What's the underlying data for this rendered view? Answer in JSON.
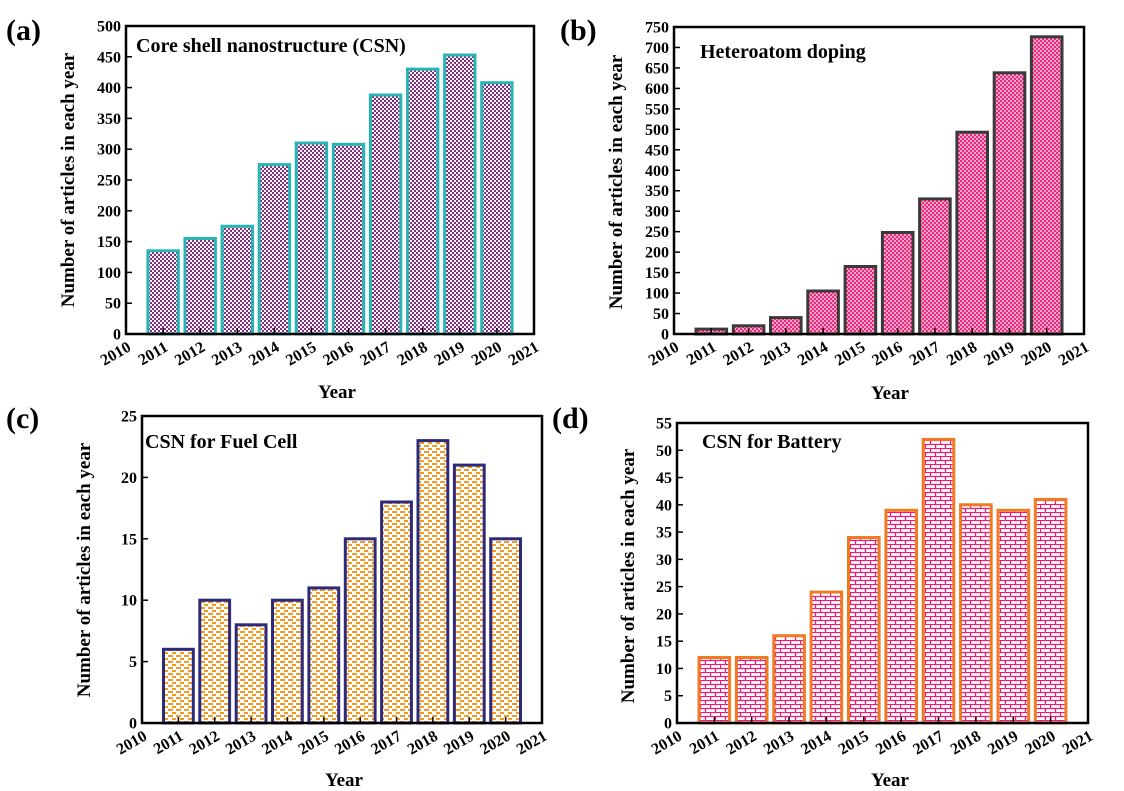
{
  "figure": {
    "panels": [
      {
        "letter": "(a)"
      },
      {
        "letter": "(b)"
      },
      {
        "letter": "(c)"
      },
      {
        "letter": "(d)"
      }
    ]
  },
  "colors": {
    "axis": "#000000",
    "panel_a_fill": "#8a2a86",
    "panel_a_edge": "#26b7b5",
    "panel_b_fill": "#ee1c78",
    "panel_b_edge": "#3a3a3a",
    "panel_c_fill": "#f39a24",
    "panel_c_edge": "#2e2a7a",
    "panel_d_fill": "#ee1c78",
    "panel_d_edge": "#f07b22"
  },
  "chart_data": [
    {
      "type": "bar",
      "title": "Core shell nanostructure (CSN)",
      "xlabel": "Year",
      "ylabel": "Number of articles in each year",
      "categories": [
        2011,
        2012,
        2013,
        2014,
        2015,
        2016,
        2017,
        2018,
        2019,
        2020
      ],
      "values": [
        135,
        155,
        175,
        275,
        310,
        308,
        388,
        430,
        453,
        408
      ],
      "xticks": [
        "2010",
        "2011",
        "2012",
        "2013",
        "2014",
        "2015",
        "2016",
        "2017",
        "2018",
        "2019",
        "2020",
        "2021"
      ],
      "xlim": [
        2010,
        2021
      ],
      "ylim": [
        0,
        500
      ],
      "ystep": 50,
      "grid": false,
      "legend": "none",
      "pattern": "checker"
    },
    {
      "type": "bar",
      "title": "Heteroatom doping",
      "xlabel": "Year",
      "ylabel": "Number of articles in each year",
      "categories": [
        2011,
        2012,
        2013,
        2014,
        2015,
        2016,
        2017,
        2018,
        2019,
        2020
      ],
      "values": [
        12,
        20,
        40,
        105,
        165,
        248,
        330,
        493,
        638,
        726
      ],
      "xticks": [
        "2010",
        "2011",
        "2012",
        "2013",
        "2014",
        "2015",
        "2016",
        "2017",
        "2018",
        "2019",
        "2020",
        "2021"
      ],
      "xlim": [
        2010,
        2021
      ],
      "ylim": [
        0,
        750
      ],
      "ystep": 50,
      "grid": false,
      "legend": "none",
      "pattern": "dots"
    },
    {
      "type": "bar",
      "title": "CSN for Fuel Cell",
      "xlabel": "Year",
      "ylabel": "Number of articles in each year",
      "categories": [
        2011,
        2012,
        2013,
        2014,
        2015,
        2016,
        2017,
        2018,
        2019,
        2020
      ],
      "values": [
        6,
        10,
        8,
        10,
        11,
        15,
        18,
        23,
        21,
        15
      ],
      "xticks": [
        "2010",
        "2011",
        "2012",
        "2013",
        "2014",
        "2015",
        "2016",
        "2017",
        "2018",
        "2019",
        "2020",
        "2021"
      ],
      "xlim": [
        2010,
        2021
      ],
      "ylim": [
        0,
        25
      ],
      "ystep": 5,
      "grid": false,
      "legend": "none",
      "pattern": "dashes"
    },
    {
      "type": "bar",
      "title": "CSN for Battery",
      "xlabel": "Year",
      "ylabel": "Number of articles in each year",
      "categories": [
        2011,
        2012,
        2013,
        2014,
        2015,
        2016,
        2017,
        2018,
        2019,
        2020
      ],
      "values": [
        12,
        12,
        16,
        24,
        34,
        39,
        52,
        40,
        39,
        41
      ],
      "xticks": [
        "2010",
        "2011",
        "2012",
        "2013",
        "2014",
        "2015",
        "2016",
        "2017",
        "2018",
        "2019",
        "2020",
        "2021"
      ],
      "xlim": [
        2010,
        2021
      ],
      "ylim": [
        0,
        55
      ],
      "ystep": 5,
      "grid": false,
      "legend": "none",
      "pattern": "bricks"
    }
  ]
}
